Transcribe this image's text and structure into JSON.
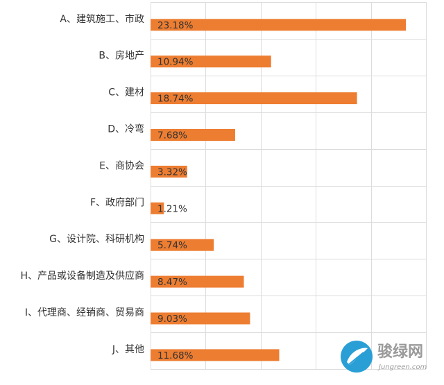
{
  "chart_data": {
    "type": "bar",
    "orientation": "horizontal",
    "categories": [
      "A、建筑施工、市政",
      "B、房地产",
      "C、建材",
      "D、冷弯",
      "E、商协会",
      "F、政府部门",
      "G、设计院、科研机构",
      "H、产品或设备制造及供应商",
      "I、代理商、经销商、贸易商",
      "J、其他"
    ],
    "values": [
      23.18,
      10.94,
      18.74,
      7.68,
      3.32,
      1.21,
      5.74,
      8.47,
      9.03,
      11.68
    ],
    "value_labels": [
      "23.18%",
      "10.94%",
      "18.74%",
      "7.68%",
      "3.32%",
      "1.21%",
      "5.74%",
      "8.47%",
      "9.03%",
      "11.68%"
    ],
    "xlim": [
      0,
      25
    ],
    "grid": true,
    "bar_color": "#ed7d31",
    "title": "",
    "xlabel": "",
    "ylabel": ""
  },
  "watermark": {
    "text": "骏绿网",
    "subtext": "Jungreen.com",
    "color": "#9a9a9a",
    "logo_color": "#2a9fd6"
  }
}
